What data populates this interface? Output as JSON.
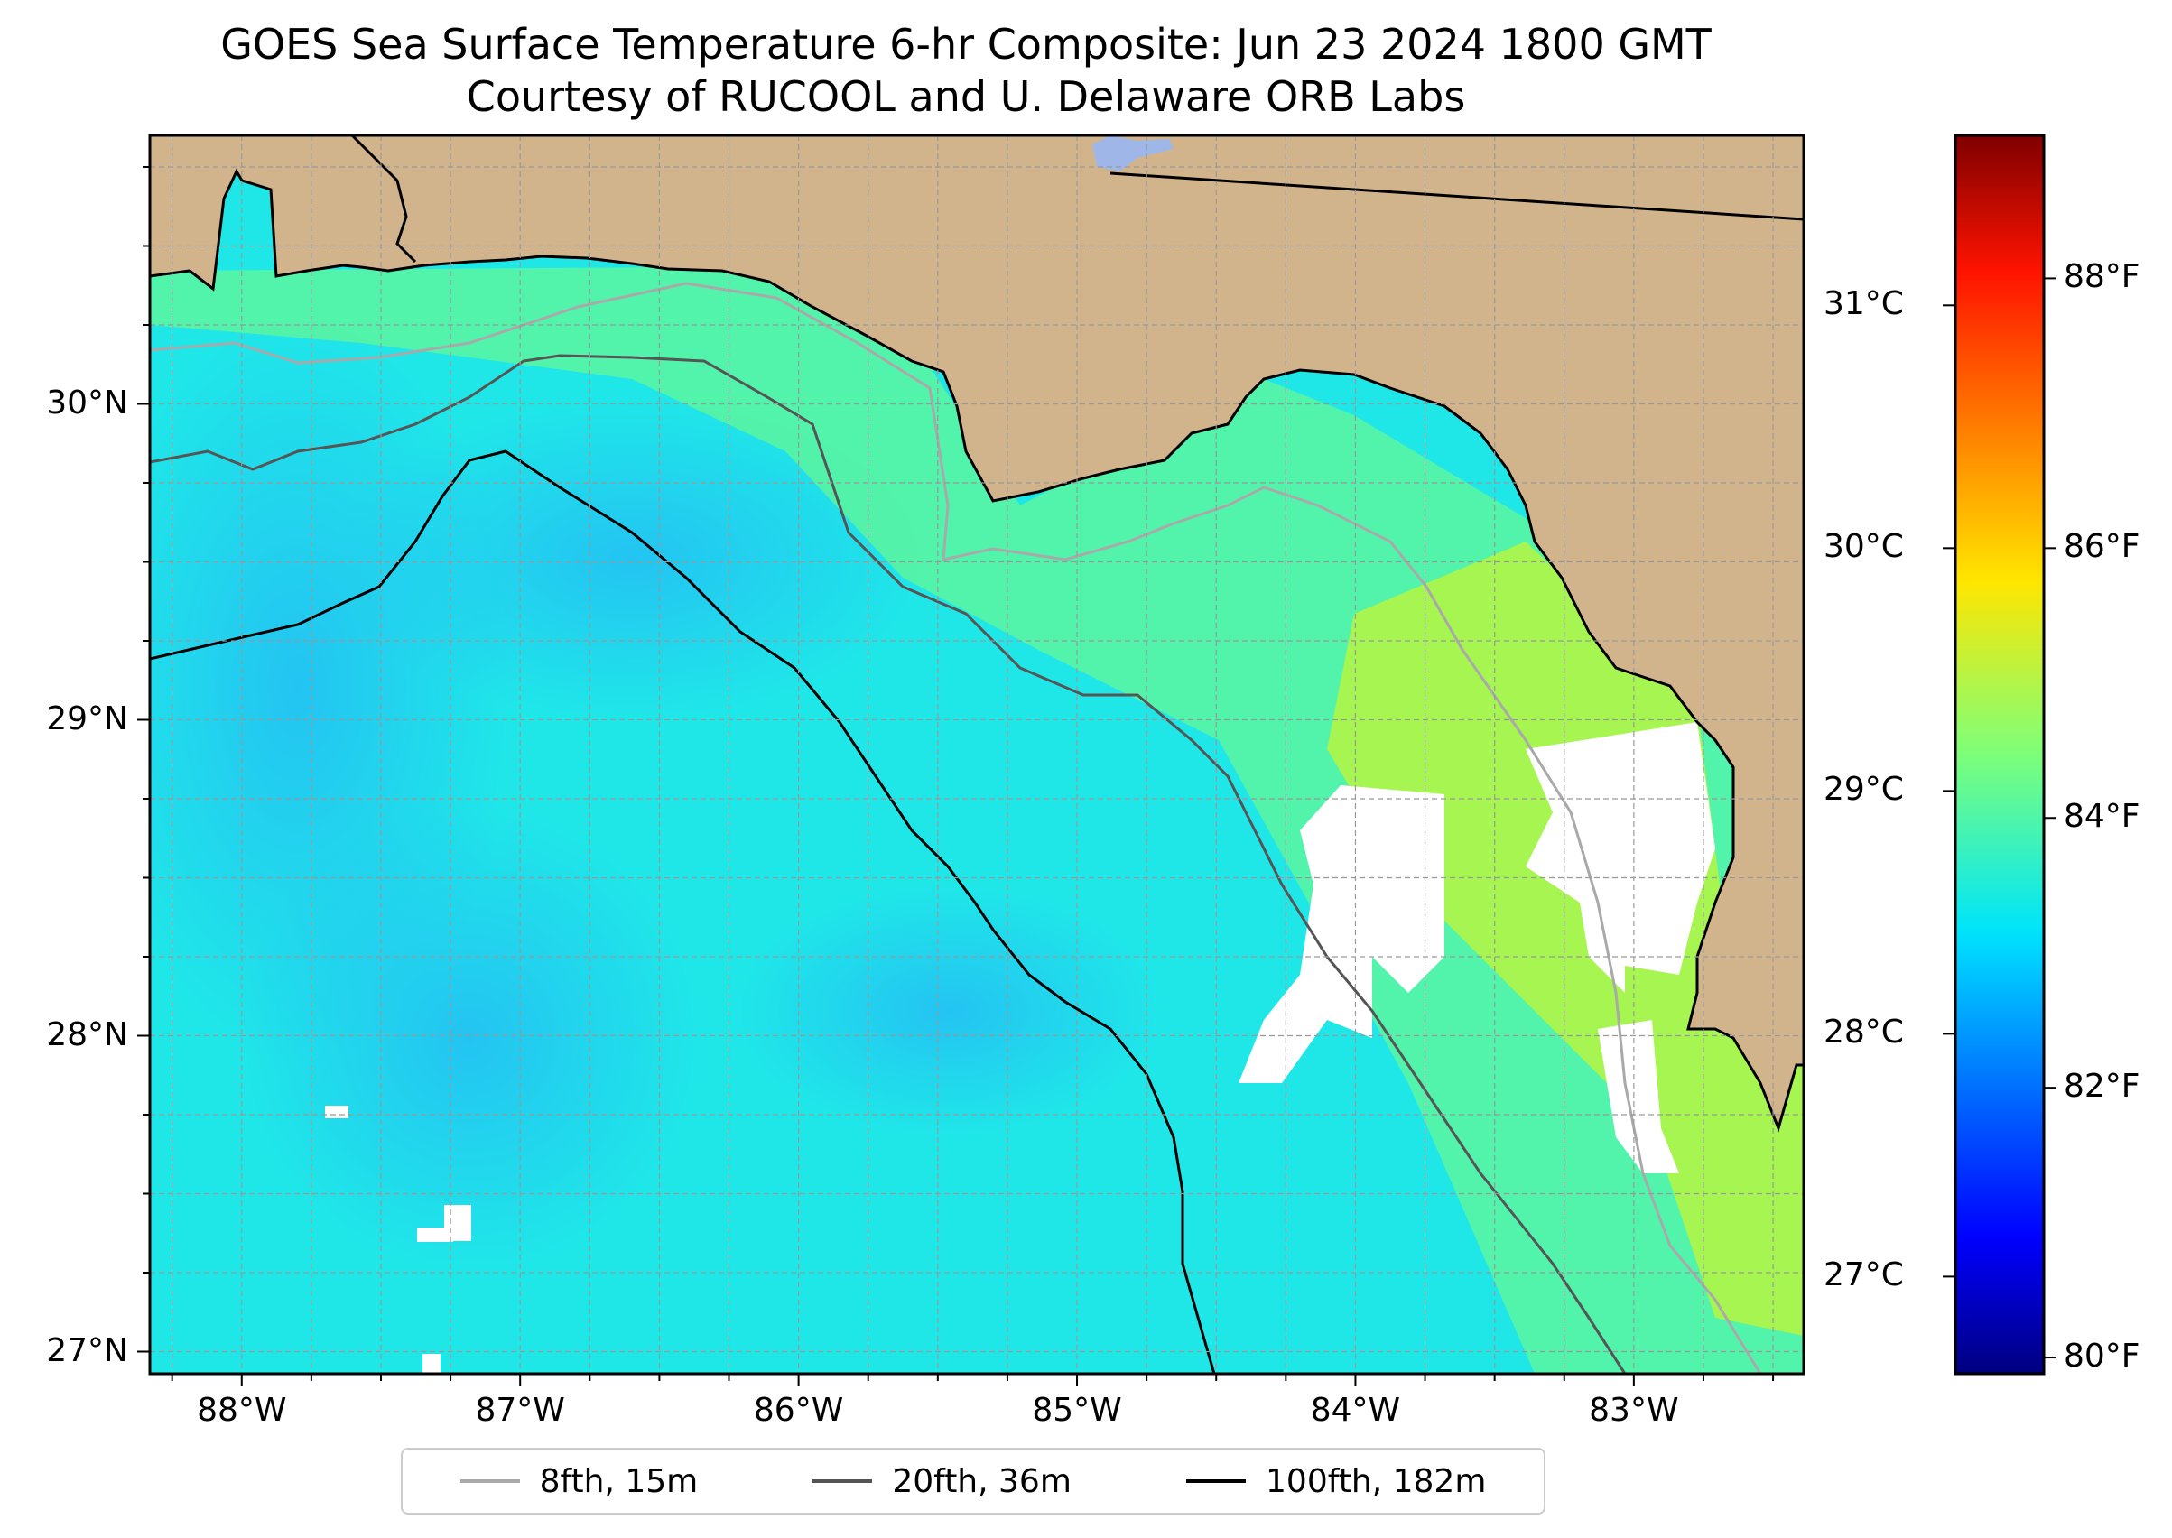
{
  "title": "GOES Sea Surface Temperature 6-hr Composite: Jun 23 2024 1800 GMT",
  "subtitle": "Courtesy of RUCOOL and U. Delaware ORB Labs",
  "map": {
    "extent": {
      "lon": [
        -88.33,
        -82.39
      ],
      "lat": [
        26.93,
        30.85
      ]
    },
    "land_color": "#d2b48c",
    "grid": true,
    "lat_ticks": [
      {
        "value": 30,
        "label": "30°N"
      },
      {
        "value": 29,
        "label": "29°N"
      },
      {
        "value": 28,
        "label": "28°N"
      },
      {
        "value": 27,
        "label": "27°N"
      }
    ],
    "lon_ticks": [
      {
        "value": -88,
        "label": "88°W"
      },
      {
        "value": -87,
        "label": "87°W"
      },
      {
        "value": -86,
        "label": "86°W"
      },
      {
        "value": -85,
        "label": "85°W"
      },
      {
        "value": -84,
        "label": "84°W"
      },
      {
        "value": -83,
        "label": "83°W"
      }
    ]
  },
  "colorbar": {
    "colormap": "jet",
    "range_c": [
      26.6,
      31.7
    ],
    "celsius_ticks": [
      {
        "value": 31,
        "label": "31°C"
      },
      {
        "value": 30,
        "label": "30°C"
      },
      {
        "value": 29,
        "label": "29°C"
      },
      {
        "value": 28,
        "label": "28°C"
      },
      {
        "value": 27,
        "label": "27°C"
      }
    ],
    "fahrenheit_ticks": [
      {
        "value": 88,
        "label": "88°F"
      },
      {
        "value": 86,
        "label": "86°F"
      },
      {
        "value": 84,
        "label": "84°F"
      },
      {
        "value": 82,
        "label": "82°F"
      },
      {
        "value": 80,
        "label": "80°F"
      }
    ]
  },
  "legend": {
    "placement": "bottom-center",
    "items": [
      {
        "label": "8fth, 15m",
        "color": "#a9a9a9"
      },
      {
        "label": "20fth, 36m",
        "color": "#555555"
      },
      {
        "label": "100fth, 182m",
        "color": "#000000"
      }
    ]
  },
  "colors": {
    "sst_offshore": "#1fe7e8",
    "sst_cool_patch": "#27c4f2",
    "sst_nearshore": "#5cf5a0",
    "sst_warm": "#c8f53a",
    "no_data": "#ffffff"
  }
}
